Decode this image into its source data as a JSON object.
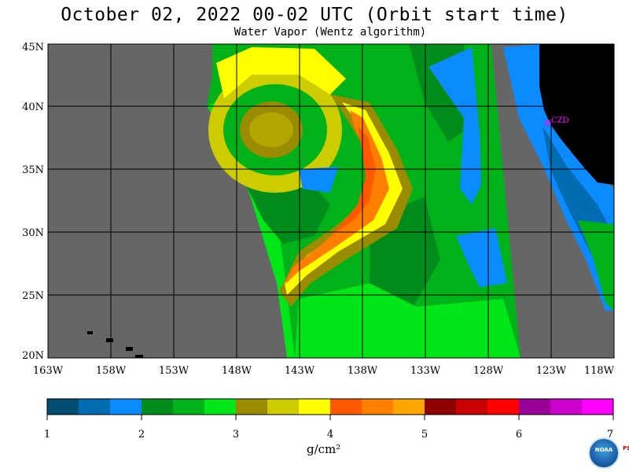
{
  "header": {
    "title": "October 02, 2022  00-02 UTC  (Orbit start time)",
    "subtitle": "Water Vapor (Wentz algorithm)"
  },
  "map": {
    "lat_labels": [
      "45N",
      "40N",
      "35N",
      "30N",
      "25N",
      "20N"
    ],
    "lon_labels": [
      "163W",
      "158W",
      "153W",
      "148W",
      "143W",
      "138W",
      "133W",
      "128W",
      "123W",
      "118W"
    ],
    "station_label": "CZD",
    "colors": {
      "no_data": "#666666",
      "land": "#000000",
      "grid": "#000000",
      "station": "#ff00ff"
    }
  },
  "colorbar": {
    "tick_labels": [
      "1",
      "2",
      "3",
      "4",
      "5",
      "6",
      "7"
    ],
    "unit_label": "g/cm²",
    "colors": [
      "#004c73",
      "#006db3",
      "#0b8bff",
      "#008c1a",
      "#00b21a",
      "#00e619",
      "#998c00",
      "#cccc00",
      "#ffff00",
      "#ff5900",
      "#ff7f00",
      "#ffa600",
      "#8c0000",
      "#c80000",
      "#ff0000",
      "#990099",
      "#cc00cc",
      "#ff00ff"
    ]
  },
  "logo": {
    "text": "NOAA",
    "side_text": "PSL"
  }
}
